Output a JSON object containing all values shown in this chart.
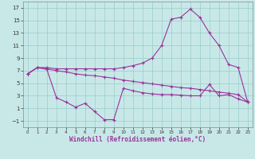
{
  "xlabel": "Windchill (Refroidissement éolien,°C)",
  "background_color": "#c8e8e8",
  "grid_color": "#99cccc",
  "line_color": "#993399",
  "xlim_min": -0.5,
  "xlim_max": 23.5,
  "ylim_min": -2.0,
  "ylim_max": 18.0,
  "yticks": [
    -1,
    1,
    3,
    5,
    7,
    9,
    11,
    13,
    15,
    17
  ],
  "xticks": [
    0,
    1,
    2,
    3,
    4,
    5,
    6,
    7,
    8,
    9,
    10,
    11,
    12,
    13,
    14,
    15,
    16,
    17,
    18,
    19,
    20,
    21,
    22,
    23
  ],
  "line1_x": [
    0,
    1,
    2,
    3,
    4,
    5,
    6,
    7,
    8,
    9,
    10,
    11,
    12,
    13,
    14,
    15,
    16,
    17,
    18,
    19,
    20,
    21,
    22,
    23
  ],
  "line1_y": [
    6.5,
    7.5,
    7.5,
    7.3,
    7.3,
    7.3,
    7.3,
    7.3,
    7.3,
    7.3,
    7.5,
    7.8,
    8.2,
    9.0,
    11.0,
    15.2,
    15.5,
    16.8,
    15.5,
    13.0,
    11.0,
    8.0,
    7.5,
    2.0
  ],
  "line2_x": [
    0,
    1,
    2,
    3,
    4,
    5,
    6,
    7,
    8,
    9,
    10,
    11,
    12,
    13,
    14,
    15,
    16,
    17,
    18,
    19,
    20,
    21,
    22,
    23
  ],
  "line2_y": [
    6.5,
    7.5,
    7.3,
    7.0,
    6.8,
    6.5,
    6.3,
    6.2,
    6.0,
    5.8,
    5.5,
    5.3,
    5.1,
    4.9,
    4.7,
    4.5,
    4.3,
    4.2,
    4.0,
    3.8,
    3.6,
    3.4,
    3.2,
    2.0
  ],
  "line3_x": [
    0,
    1,
    2,
    3,
    4,
    5,
    6,
    7,
    8,
    9,
    10,
    11,
    12,
    13,
    14,
    15,
    16,
    17,
    18,
    19,
    20,
    21,
    22,
    23
  ],
  "line3_y": [
    6.5,
    7.5,
    7.2,
    2.7,
    2.0,
    1.2,
    1.8,
    0.5,
    -0.8,
    -0.8,
    4.2,
    3.8,
    3.5,
    3.3,
    3.2,
    3.2,
    3.1,
    3.0,
    3.0,
    4.8,
    3.0,
    3.2,
    2.5,
    2.0
  ],
  "tick_fontsize": 5,
  "xlabel_fontsize": 5.5,
  "marker_size": 3,
  "line_width": 0.8
}
